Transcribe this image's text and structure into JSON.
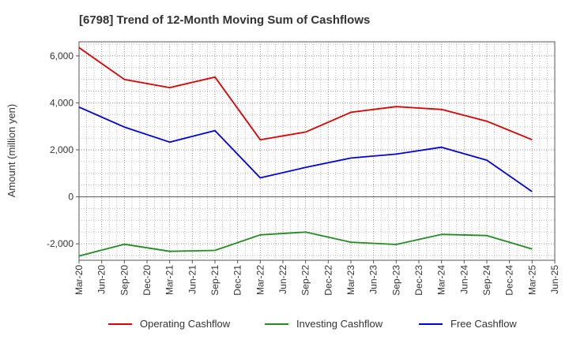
{
  "chart_data": {
    "type": "line",
    "title": "[6798]  Trend of 12-Month Moving Sum of Cashflows",
    "xlabel": "",
    "ylabel": "Amount (million yen)",
    "x_ticks": [
      "Mar-20",
      "Jun-20",
      "Sep-20",
      "Dec-20",
      "Mar-21",
      "Jun-21",
      "Sep-21",
      "Dec-21",
      "Mar-22",
      "Jun-22",
      "Sep-22",
      "Dec-22",
      "Mar-23",
      "Jun-23",
      "Sep-23",
      "Dec-23",
      "Mar-24",
      "Jun-24",
      "Sep-24",
      "Dec-24",
      "Mar-25",
      "Jun-25"
    ],
    "x": [
      "Mar-20",
      "Sep-20",
      "Mar-21",
      "Sep-21",
      "Mar-22",
      "Sep-22",
      "Mar-23",
      "Sep-23",
      "Mar-24",
      "Sep-24",
      "Mar-25"
    ],
    "y_ticks": [
      6000,
      4000,
      2000,
      0,
      -2000
    ],
    "y_tick_labels": [
      "6,000",
      "4,000",
      "2,000",
      "0",
      "-2,000"
    ],
    "ylim": [
      -2700,
      6600
    ],
    "grid": true,
    "legend_position": "bottom",
    "series": [
      {
        "name": "Operating Cashflow",
        "color": "#dd0000",
        "values": [
          6350,
          5000,
          4650,
          5100,
          2430,
          2760,
          3600,
          3840,
          3720,
          3220,
          2430
        ]
      },
      {
        "name": "Investing Cashflow",
        "color": "#228b22",
        "values": [
          -2520,
          -2020,
          -2320,
          -2280,
          -1620,
          -1500,
          -1930,
          -2030,
          -1600,
          -1650,
          -2220
        ]
      },
      {
        "name": "Free Cashflow",
        "color": "#0000dd",
        "values": [
          3820,
          2970,
          2330,
          2820,
          810,
          1250,
          1650,
          1820,
          2110,
          1560,
          220
        ]
      }
    ]
  }
}
